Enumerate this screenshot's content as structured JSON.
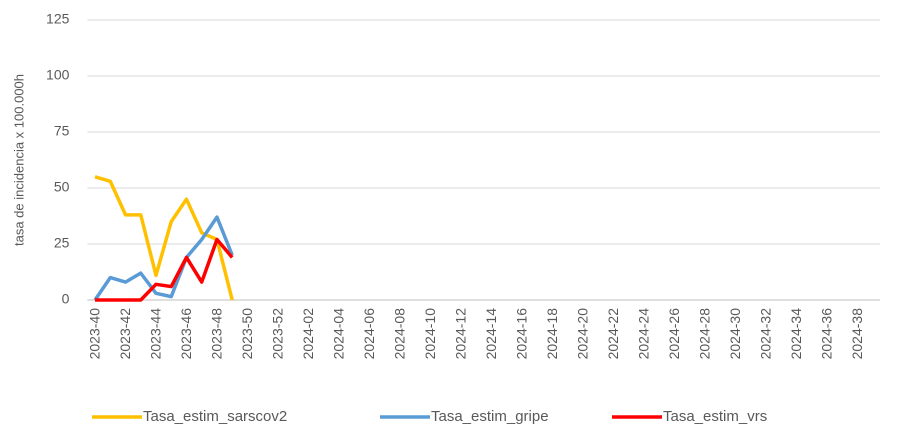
{
  "chart_data": {
    "type": "line",
    "y_label": "tasa de incidencia x 100.000h",
    "categories": [
      "2023-40",
      null,
      "2023-42",
      null,
      "2023-44",
      null,
      "2023-46",
      null,
      "2023-48",
      null,
      "2023-50",
      null,
      "2023-52",
      null,
      "2024-02",
      null,
      "2024-04",
      null,
      "2024-06",
      null,
      "2024-08",
      null,
      "2024-10",
      null,
      "2024-12",
      null,
      "2024-14",
      null,
      "2024-16",
      null,
      "2024-18",
      null,
      "2024-20",
      null,
      "2024-22",
      null,
      "2024-24",
      null,
      "2024-26",
      null,
      "2024-28",
      null,
      "2024-30",
      null,
      "2024-32",
      null,
      "2024-34",
      null,
      "2024-36",
      null,
      "2024-38",
      null
    ],
    "series": [
      {
        "name": "Tasa_estim_sarscov2",
        "color": "#ffc000",
        "values": [
          55,
          53,
          38,
          38,
          11,
          35,
          45,
          30,
          27,
          0,
          null,
          null,
          null,
          null,
          null,
          null,
          null,
          null,
          null,
          null,
          null,
          null,
          null,
          null,
          null,
          null,
          null,
          null,
          null,
          null,
          null,
          null,
          null,
          null,
          null,
          null,
          null,
          null,
          null,
          null,
          null,
          null,
          null,
          null,
          null,
          null,
          null,
          null,
          null,
          null,
          null,
          null
        ]
      },
      {
        "name": "Tasa_estim_gripe",
        "color": "#5b9bd5",
        "values": [
          0,
          10,
          8,
          12,
          3,
          1.5,
          19,
          27,
          37,
          20,
          null,
          null,
          null,
          null,
          null,
          null,
          null,
          null,
          null,
          null,
          null,
          null,
          null,
          null,
          null,
          null,
          null,
          null,
          null,
          null,
          null,
          null,
          null,
          null,
          null,
          null,
          null,
          null,
          null,
          null,
          null,
          null,
          null,
          null,
          null,
          null,
          null,
          null,
          null,
          null,
          null,
          null
        ]
      },
      {
        "name": "Tasa_estim_vrs",
        "color": "#ff0000",
        "values": [
          0,
          0,
          0,
          0,
          7,
          6,
          19,
          8,
          27,
          19,
          null,
          null,
          null,
          null,
          null,
          null,
          null,
          null,
          null,
          null,
          null,
          null,
          null,
          null,
          null,
          null,
          null,
          null,
          null,
          null,
          null,
          null,
          null,
          null,
          null,
          null,
          null,
          null,
          null,
          null,
          null,
          null,
          null,
          null,
          null,
          null,
          null,
          null,
          null,
          null,
          null,
          null
        ]
      }
    ],
    "ylim": [
      0,
      125
    ],
    "yticks": [
      0,
      25,
      50,
      75,
      100,
      125
    ],
    "grid": true,
    "legend": "bottom"
  }
}
